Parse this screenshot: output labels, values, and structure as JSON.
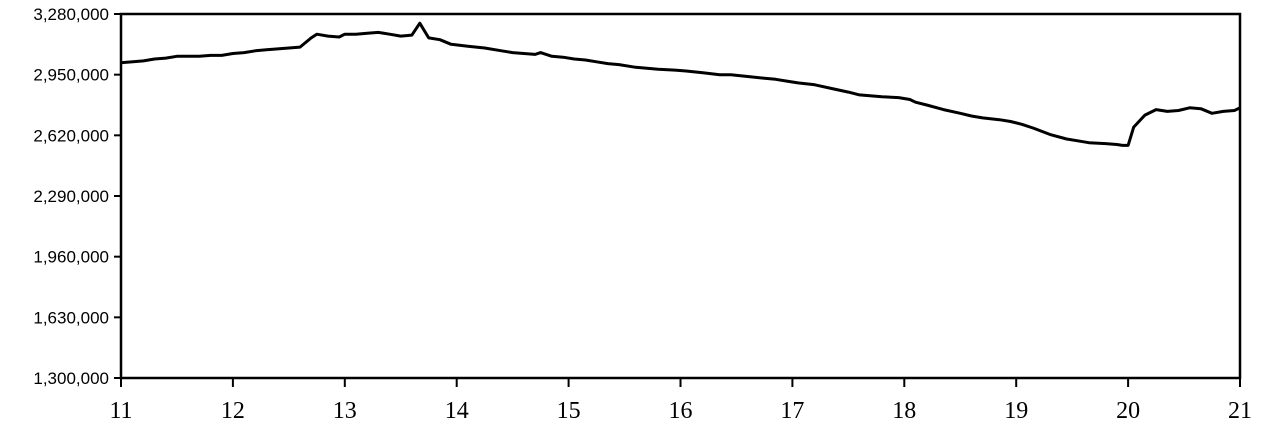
{
  "chart_data": {
    "type": "line",
    "title": "",
    "xlabel": "",
    "ylabel": "",
    "xlim": [
      11,
      21
    ],
    "ylim": [
      1300000,
      3280000
    ],
    "x_ticks": [
      11,
      12,
      13,
      14,
      15,
      16,
      17,
      18,
      19,
      20,
      21
    ],
    "x_tick_labels": [
      "11",
      "12",
      "13",
      "14",
      "15",
      "16",
      "17",
      "18",
      "19",
      "20",
      "21"
    ],
    "y_ticks": [
      1300000,
      1630000,
      1960000,
      2290000,
      2620000,
      2950000,
      3280000
    ],
    "y_tick_labels": [
      "1,300,000",
      "1,630,000",
      "1,960,000",
      "2,290,000",
      "2,620,000",
      "2,950,000",
      "3,280,000"
    ],
    "grid": false,
    "line_color": "#000000",
    "series": [
      {
        "x": [
          11.0,
          11.2,
          11.3,
          11.4,
          11.5,
          11.6,
          11.7,
          11.8,
          11.9,
          12.0,
          12.1,
          12.2,
          12.3,
          12.4,
          12.5,
          12.6,
          12.7,
          12.75,
          12.85,
          12.95,
          13.0,
          13.1,
          13.2,
          13.3,
          13.4,
          13.5,
          13.6,
          13.67,
          13.75,
          13.85,
          13.95,
          14.1,
          14.25,
          14.4,
          14.5,
          14.6,
          14.7,
          14.75,
          14.85,
          14.95,
          15.05,
          15.15,
          15.25,
          15.35,
          15.45,
          15.6,
          15.7,
          15.8,
          15.95,
          16.05,
          16.2,
          16.35,
          16.45,
          16.6,
          16.75,
          16.85,
          16.95,
          17.05,
          17.2,
          17.35,
          17.5,
          17.6,
          17.8,
          17.95,
          18.05,
          18.1,
          18.2,
          18.35,
          18.5,
          18.6,
          18.7,
          18.85,
          18.95,
          19.05,
          19.15,
          19.3,
          19.45,
          19.55,
          19.65,
          19.8,
          19.9,
          19.95,
          20.0,
          20.05,
          20.15,
          20.25,
          20.35,
          20.45,
          20.55,
          20.65,
          20.75,
          20.85,
          20.95,
          21.0
        ],
        "values": [
          3015000,
          3025000,
          3035000,
          3040000,
          3050000,
          3050000,
          3050000,
          3055000,
          3055000,
          3065000,
          3070000,
          3080000,
          3085000,
          3090000,
          3095000,
          3100000,
          3150000,
          3170000,
          3160000,
          3155000,
          3170000,
          3170000,
          3175000,
          3180000,
          3170000,
          3160000,
          3165000,
          3230000,
          3150000,
          3140000,
          3115000,
          3105000,
          3095000,
          3080000,
          3070000,
          3065000,
          3060000,
          3070000,
          3050000,
          3045000,
          3035000,
          3030000,
          3020000,
          3010000,
          3005000,
          2990000,
          2985000,
          2980000,
          2975000,
          2970000,
          2960000,
          2950000,
          2950000,
          2940000,
          2930000,
          2925000,
          2915000,
          2905000,
          2895000,
          2875000,
          2855000,
          2840000,
          2830000,
          2825000,
          2815000,
          2800000,
          2785000,
          2760000,
          2740000,
          2725000,
          2715000,
          2705000,
          2695000,
          2680000,
          2660000,
          2625000,
          2600000,
          2590000,
          2580000,
          2575000,
          2570000,
          2565000,
          2565000,
          2665000,
          2730000,
          2760000,
          2750000,
          2755000,
          2770000,
          2765000,
          2740000,
          2750000,
          2755000,
          2770000
        ]
      }
    ]
  }
}
